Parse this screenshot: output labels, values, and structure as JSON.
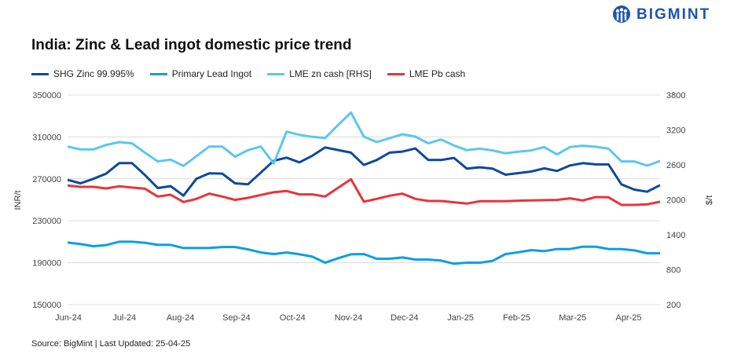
{
  "brand": {
    "name": "BIGMINT",
    "color": "#1a56b0"
  },
  "footer": {
    "source": "Source: BigMint | Last Updated: 25-04-25"
  },
  "chart_data": {
    "type": "line",
    "title": "India: Zinc & Lead ingot domestic price trend",
    "ylabel": "INR/t",
    "y2label": "$/t",
    "ylim": [
      150000,
      350000
    ],
    "y2lim": [
      200,
      3800
    ],
    "yticks": [
      "350000",
      "310000",
      "270000",
      "230000",
      "190000",
      "150000"
    ],
    "y2ticks": [
      "3800",
      "3200",
      "2600",
      "2000",
      "1400",
      "800",
      "200"
    ],
    "xtick_labels": [
      "Jun-24",
      "Jul-24",
      "Aug-24",
      "Sep-24",
      "Oct-24",
      "Nov-24",
      "Dec-24",
      "Jan-25",
      "Feb-25",
      "Mar-25",
      "Apr-25"
    ],
    "grid": true,
    "legend": "top-left",
    "series": [
      {
        "name": "SHG Zinc 99.995%",
        "axis": "left",
        "color": "#0d4a9c",
        "values": [
          269000,
          265750,
          270000,
          275000,
          285000,
          285000,
          273750,
          261250,
          263000,
          254000,
          270000,
          275250,
          275000,
          265750,
          264750,
          276000,
          287250,
          290250,
          285750,
          292000,
          300000,
          297500,
          295000,
          283250,
          288000,
          295000,
          296000,
          299000,
          288000,
          288000,
          290000,
          279750,
          281000,
          279750,
          274000,
          275500,
          277000,
          280000,
          277500,
          282750,
          285000,
          283750,
          283750,
          264750,
          259750,
          257750,
          264000
        ]
      },
      {
        "name": "Primary Lead Ingot",
        "axis": "left",
        "color": "#0aa0e0",
        "values": [
          209250,
          207750,
          205750,
          206750,
          210000,
          210000,
          209000,
          207000,
          207000,
          204000,
          204000,
          204000,
          205000,
          205000,
          202750,
          199750,
          198250,
          199750,
          198000,
          195750,
          190000,
          194250,
          198000,
          198250,
          193750,
          193750,
          195000,
          193000,
          193000,
          192000,
          189000,
          190000,
          190000,
          191750,
          198250,
          200000,
          202000,
          201000,
          203000,
          203000,
          205250,
          205250,
          203000,
          203000,
          201750,
          199000,
          199000
        ]
      },
      {
        "name": "LME zn cash [RHS]",
        "axis": "right",
        "color": "#5cc6f2",
        "values": [
          2915,
          2866,
          2866,
          2942,
          2991,
          2969,
          2812,
          2659,
          2690,
          2582,
          2749,
          2915,
          2915,
          2740,
          2852,
          2915,
          2623,
          3171,
          3117,
          3081,
          3063,
          3283,
          3499,
          3086,
          2991,
          3059,
          3126,
          3086,
          2969,
          3036,
          2933,
          2852,
          2879,
          2848,
          2798,
          2825,
          2848,
          2906,
          2780,
          2906,
          2929,
          2911,
          2879,
          2659,
          2659,
          2587,
          2668
        ]
      },
      {
        "name": "LME Pb cash",
        "axis": "right",
        "color": "#e8353a",
        "values": [
          2245,
          2223,
          2223,
          2196,
          2232,
          2210,
          2191,
          2057,
          2088,
          1962,
          2016,
          2106,
          2057,
          1998,
          2034,
          2084,
          2129,
          2151,
          2093,
          2093,
          2057,
          2205,
          2353,
          1967,
          2016,
          2070,
          2106,
          2016,
          1980,
          1980,
          1958,
          1935,
          1976,
          1976,
          1976,
          1985,
          1989,
          1994,
          1998,
          2025,
          1989,
          2047,
          2043,
          1913,
          1913,
          1922,
          1967
        ]
      }
    ]
  }
}
